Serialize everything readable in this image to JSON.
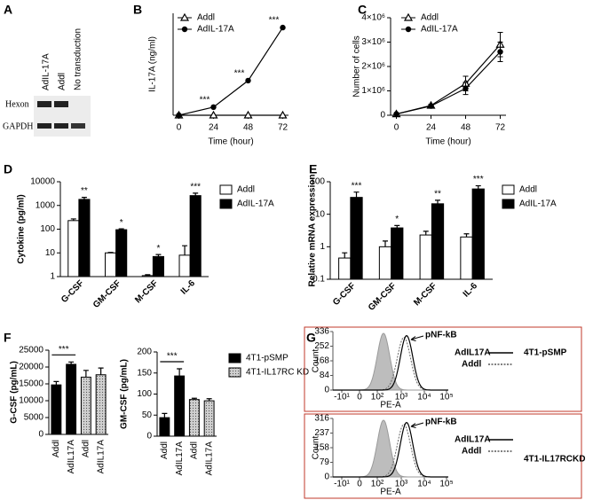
{
  "gel": {
    "panel_label": "A",
    "lanes": [
      "AdIL-17A",
      "Addl",
      "No transduction"
    ],
    "bands": [
      "Hexon",
      "GAPDH"
    ]
  },
  "chart_data": [
    {
      "panel_label": "B",
      "type": "line",
      "ylabel": "IL-17A (ng/ml)",
      "xlabel": "Time (hour)",
      "x": [
        0,
        24,
        48,
        72
      ],
      "xlim": [
        -4,
        76
      ],
      "xticks": [
        0,
        24,
        48,
        72
      ],
      "ylim": [
        0,
        50
      ],
      "legend": true,
      "series": [
        {
          "name": "Addl",
          "color": "#000000",
          "marker": "triangle-open",
          "values": [
            0,
            0,
            0,
            0
          ]
        },
        {
          "name": "AdIL-17A",
          "color": "#000000",
          "marker": "circle",
          "values": [
            0,
            4,
            17,
            43
          ],
          "significance": [
            null,
            "***",
            "***",
            "***"
          ]
        }
      ]
    },
    {
      "panel_label": "C",
      "type": "line",
      "ylabel": "Number of cells",
      "xlabel": "Time (hour)",
      "x": [
        0,
        24,
        48,
        72
      ],
      "xlim": [
        -4,
        76
      ],
      "xticks": [
        0,
        24,
        48,
        72
      ],
      "ylim": [
        0,
        4000000
      ],
      "yticks": [
        0,
        {
          "value": 1000000,
          "label": "1×10⁶"
        },
        {
          "value": 2000000,
          "label": "2×10⁶"
        },
        {
          "value": 3000000,
          "label": "3×10⁶"
        },
        {
          "value": 4000000,
          "label": "4×10⁶"
        }
      ],
      "legend": true,
      "series": [
        {
          "name": "Addl",
          "color": "#000000",
          "marker": "triangle-open",
          "values": [
            50000,
            400000,
            1300000,
            2900000
          ],
          "errors": [
            20000,
            50000,
            300000,
            500000
          ]
        },
        {
          "name": "AdIL-17A",
          "color": "#000000",
          "marker": "circle",
          "values": [
            50000,
            380000,
            1100000,
            2600000
          ],
          "errors": [
            20000,
            50000,
            250000,
            400000
          ]
        }
      ]
    },
    {
      "panel_label": "D",
      "type": "bar",
      "log": true,
      "ylabel": "Cytokine (pg/ml)",
      "categories": [
        "G-CSF",
        "GM-CSF",
        "M-CSF",
        "IL-6"
      ],
      "ylim": [
        1,
        10000
      ],
      "yticks": [
        1,
        10,
        100,
        1000,
        10000
      ],
      "legend": true,
      "series": [
        {
          "name": "Addl",
          "color": "#ffffff",
          "values": [
            230,
            10,
            1.1,
            8
          ],
          "errors": [
            40,
            0.5,
            0.1,
            12
          ]
        },
        {
          "name": "AdIL-17A",
          "color": "#000000",
          "values": [
            1800,
            95,
            7,
            2600
          ],
          "errors": [
            400,
            8,
            1.5,
            700
          ],
          "significance": [
            "**",
            "*",
            "*",
            "***"
          ]
        }
      ]
    },
    {
      "panel_label": "E",
      "type": "bar",
      "log": true,
      "ylabel": "Relative mRNA expression",
      "categories": [
        "G-CSF",
        "GM-CSF",
        "M-CSF",
        "IL-6"
      ],
      "ylim": [
        0.1,
        100
      ],
      "yticks": [
        0.1,
        1,
        10,
        100
      ],
      "legend": true,
      "series": [
        {
          "name": "Addl",
          "color": "#ffffff",
          "values": [
            0.45,
            1.0,
            2.3,
            2.0
          ],
          "errors": [
            0.2,
            0.5,
            0.7,
            0.5
          ]
        },
        {
          "name": "AdIL-17A",
          "color": "#000000",
          "values": [
            33,
            3.8,
            21,
            60
          ],
          "errors": [
            15,
            0.7,
            6,
            15
          ],
          "significance": [
            "***",
            "*",
            "**",
            "***"
          ]
        }
      ]
    },
    {
      "panel_label": "F",
      "type": "bar",
      "ylabel": "G-CSF (pg/mL)",
      "categories": [
        "Addl",
        "AdIL17A",
        "Addl",
        "AdIL17A"
      ],
      "ylim": [
        0,
        25000
      ],
      "yticks": [
        0,
        5000,
        10000,
        15000,
        20000,
        25000
      ],
      "legend": false,
      "bracket": "***",
      "series": [
        {
          "color": "#000000",
          "values": [
            14700,
            20800,
            null,
            null
          ],
          "errors": [
            1000,
            700,
            null,
            null
          ]
        },
        {
          "color": "#d0d0d0",
          "pattern": "dots",
          "values": [
            null,
            null,
            17000,
            17700
          ],
          "errors": [
            null,
            null,
            2000,
            2000
          ]
        }
      ]
    },
    {
      "type": "bar",
      "ylabel": "GM-CSF (pg/mL)",
      "categories": [
        "Addl",
        "AdIL17A",
        "Addl",
        "AdIL17A"
      ],
      "ylim": [
        0,
        200
      ],
      "yticks": [
        0,
        50,
        100,
        150,
        200
      ],
      "legend": true,
      "bracket": "***",
      "series": [
        {
          "name": "4T1-pSMP",
          "color": "#000000",
          "values": [
            44,
            143,
            null,
            null
          ],
          "errors": [
            10,
            17,
            null,
            null
          ]
        },
        {
          "name": "4T1-IL17RC KD",
          "color": "#d0d0d0",
          "pattern": "dots",
          "values": [
            null,
            null,
            87,
            84
          ],
          "errors": [
            null,
            null,
            3,
            5
          ]
        }
      ]
    }
  ],
  "flow": {
    "panel_label": "G",
    "panels": [
      {
        "y_label": "Count",
        "x_label": "PE-A",
        "y_ticks": [
          0,
          84,
          168,
          252,
          336
        ],
        "x_ticks": [
          "-10¹",
          "0",
          "10²",
          "10³",
          "10⁴",
          "10⁵"
        ],
        "marker": "pNF-kB",
        "legend": [
          "AdIL17A",
          "Addl"
        ],
        "row_label": "4T1-pSMP"
      },
      {
        "y_label": "Count",
        "x_label": "PE-A",
        "y_ticks": [
          0,
          79,
          158,
          237,
          316
        ],
        "x_ticks": [
          "-10¹",
          "0",
          "10²",
          "10³",
          "10⁴",
          "10⁵"
        ],
        "marker": "pNF-kB",
        "legend": [
          "AdIL17A",
          "Addl"
        ],
        "row_label": "4T1-IL17RCKD"
      }
    ]
  }
}
